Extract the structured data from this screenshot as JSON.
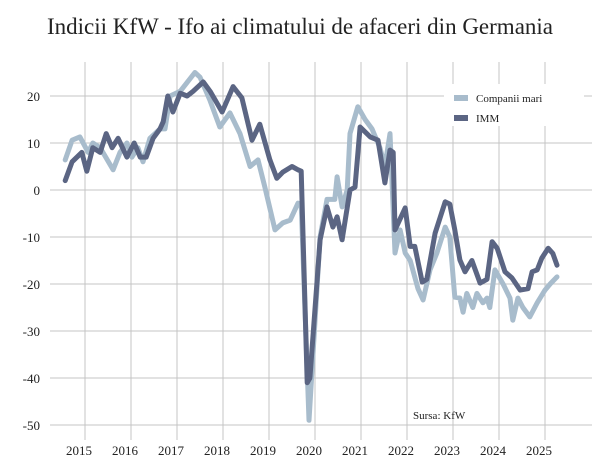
{
  "chart_data": {
    "type": "line",
    "title": "Indicii KfW - Ifo ai climatului de afaceri din Germania",
    "xlabel": "",
    "ylabel": "",
    "source": "Sursa: KfW",
    "ylim": [
      -52,
      25
    ],
    "xlim": [
      2014.4,
      2025.9
    ],
    "yticks": [
      20,
      10,
      0,
      -10,
      -20,
      -30,
      -40,
      -50
    ],
    "xticks": [
      2015,
      2016,
      2017,
      2018,
      2019,
      2020,
      2021,
      2022,
      2023,
      2024,
      2025
    ],
    "grid": true,
    "legend": "top-right",
    "series": [
      {
        "name": "Companii mari",
        "color": "#a8bccc",
        "x": [
          2014.57,
          2014.72,
          2014.89,
          2015.07,
          2015.17,
          2015.33,
          2015.61,
          2015.76,
          2015.91,
          2016.02,
          2016.15,
          2016.26,
          2016.41,
          2016.63,
          2016.74,
          2016.85,
          2017.07,
          2017.39,
          2017.5,
          2017.72,
          2017.93,
          2018.15,
          2018.37,
          2018.59,
          2018.76,
          2018.91,
          2019.13,
          2019.3,
          2019.46,
          2019.63,
          2019.7,
          2019.87,
          2020.11,
          2020.26,
          2020.43,
          2020.48,
          2020.59,
          2020.7,
          2020.76,
          2020.93,
          2021.09,
          2021.24,
          2021.41,
          2021.52,
          2021.63,
          2021.74,
          2021.85,
          2021.96,
          2022.07,
          2022.24,
          2022.35,
          2022.5,
          2022.65,
          2022.83,
          2022.93,
          2023.04,
          2023.15,
          2023.22,
          2023.3,
          2023.43,
          2023.52,
          2023.65,
          2023.74,
          2023.8,
          2023.91,
          2024.09,
          2024.24,
          2024.3,
          2024.41,
          2024.52,
          2024.67,
          2024.83,
          2025.0,
          2025.11,
          2025.26
        ],
        "values": [
          6.4,
          10.6,
          11.3,
          8,
          10,
          9,
          4.3,
          8,
          10,
          7,
          9,
          6,
          11,
          13,
          13,
          20,
          21,
          25,
          24,
          19,
          13.4,
          16.4,
          12,
          5,
          6.4,
          0.6,
          -8.5,
          -7,
          -6.4,
          -2.8,
          -3,
          -49,
          -10,
          -2,
          -2,
          2.8,
          -3.6,
          0,
          12,
          17.7,
          15,
          13,
          9,
          5,
          12,
          -13.4,
          -8.5,
          -13.4,
          -15,
          -21,
          -23.4,
          -17,
          -13.4,
          -7.9,
          -10,
          -22.8,
          -23,
          -26,
          -22,
          -25,
          -22,
          -24,
          -23,
          -25,
          -17,
          -20,
          -23,
          -27.7,
          -23,
          -25,
          -27,
          -24,
          -21.3,
          -20,
          -18.5
        ]
      },
      {
        "name": "IMM",
        "color": "#5b6583",
        "x": [
          2014.57,
          2014.72,
          2014.93,
          2015.04,
          2015.17,
          2015.33,
          2015.46,
          2015.59,
          2015.72,
          2015.91,
          2016.07,
          2016.2,
          2016.33,
          2016.48,
          2016.63,
          2016.7,
          2016.8,
          2016.91,
          2017.07,
          2017.22,
          2017.35,
          2017.57,
          2017.72,
          2017.98,
          2018.22,
          2018.41,
          2018.63,
          2018.8,
          2019.02,
          2019.17,
          2019.3,
          2019.5,
          2019.63,
          2019.7,
          2019.83,
          2019.89,
          2020.11,
          2020.26,
          2020.39,
          2020.48,
          2020.59,
          2020.76,
          2020.87,
          2020.98,
          2021.2,
          2021.37,
          2021.52,
          2021.63,
          2021.7,
          2021.74,
          2021.96,
          2022.07,
          2022.17,
          2022.33,
          2022.43,
          2022.61,
          2022.83,
          2022.93,
          2023.04,
          2023.15,
          2023.26,
          2023.41,
          2023.59,
          2023.74,
          2023.85,
          2023.96,
          2024.13,
          2024.28,
          2024.46,
          2024.63,
          2024.72,
          2024.83,
          2024.93,
          2025.07,
          2025.17,
          2025.26
        ],
        "values": [
          2,
          6,
          8,
          4,
          9,
          8,
          12,
          9,
          11,
          7,
          10,
          7,
          7,
          11,
          13,
          14.5,
          20,
          16.6,
          20.6,
          20,
          21,
          23,
          21,
          16.6,
          22,
          19.6,
          10.6,
          14,
          6.4,
          2.5,
          3.8,
          5,
          4.3,
          4,
          -41,
          -40,
          -10.6,
          -3.6,
          -7.9,
          -5.7,
          -10.6,
          0,
          0.6,
          13.4,
          11.3,
          10.6,
          1.5,
          8.5,
          8,
          -8.5,
          -3.8,
          -12,
          -12,
          -19.6,
          -19,
          -9.2,
          -2.5,
          -3,
          -8.5,
          -14.9,
          -17.4,
          -15,
          -19.8,
          -19,
          -11,
          -12.4,
          -17.4,
          -18.7,
          -21.3,
          -21,
          -17.4,
          -17,
          -14.5,
          -12.4,
          -13.5,
          -16
        ]
      }
    ]
  }
}
